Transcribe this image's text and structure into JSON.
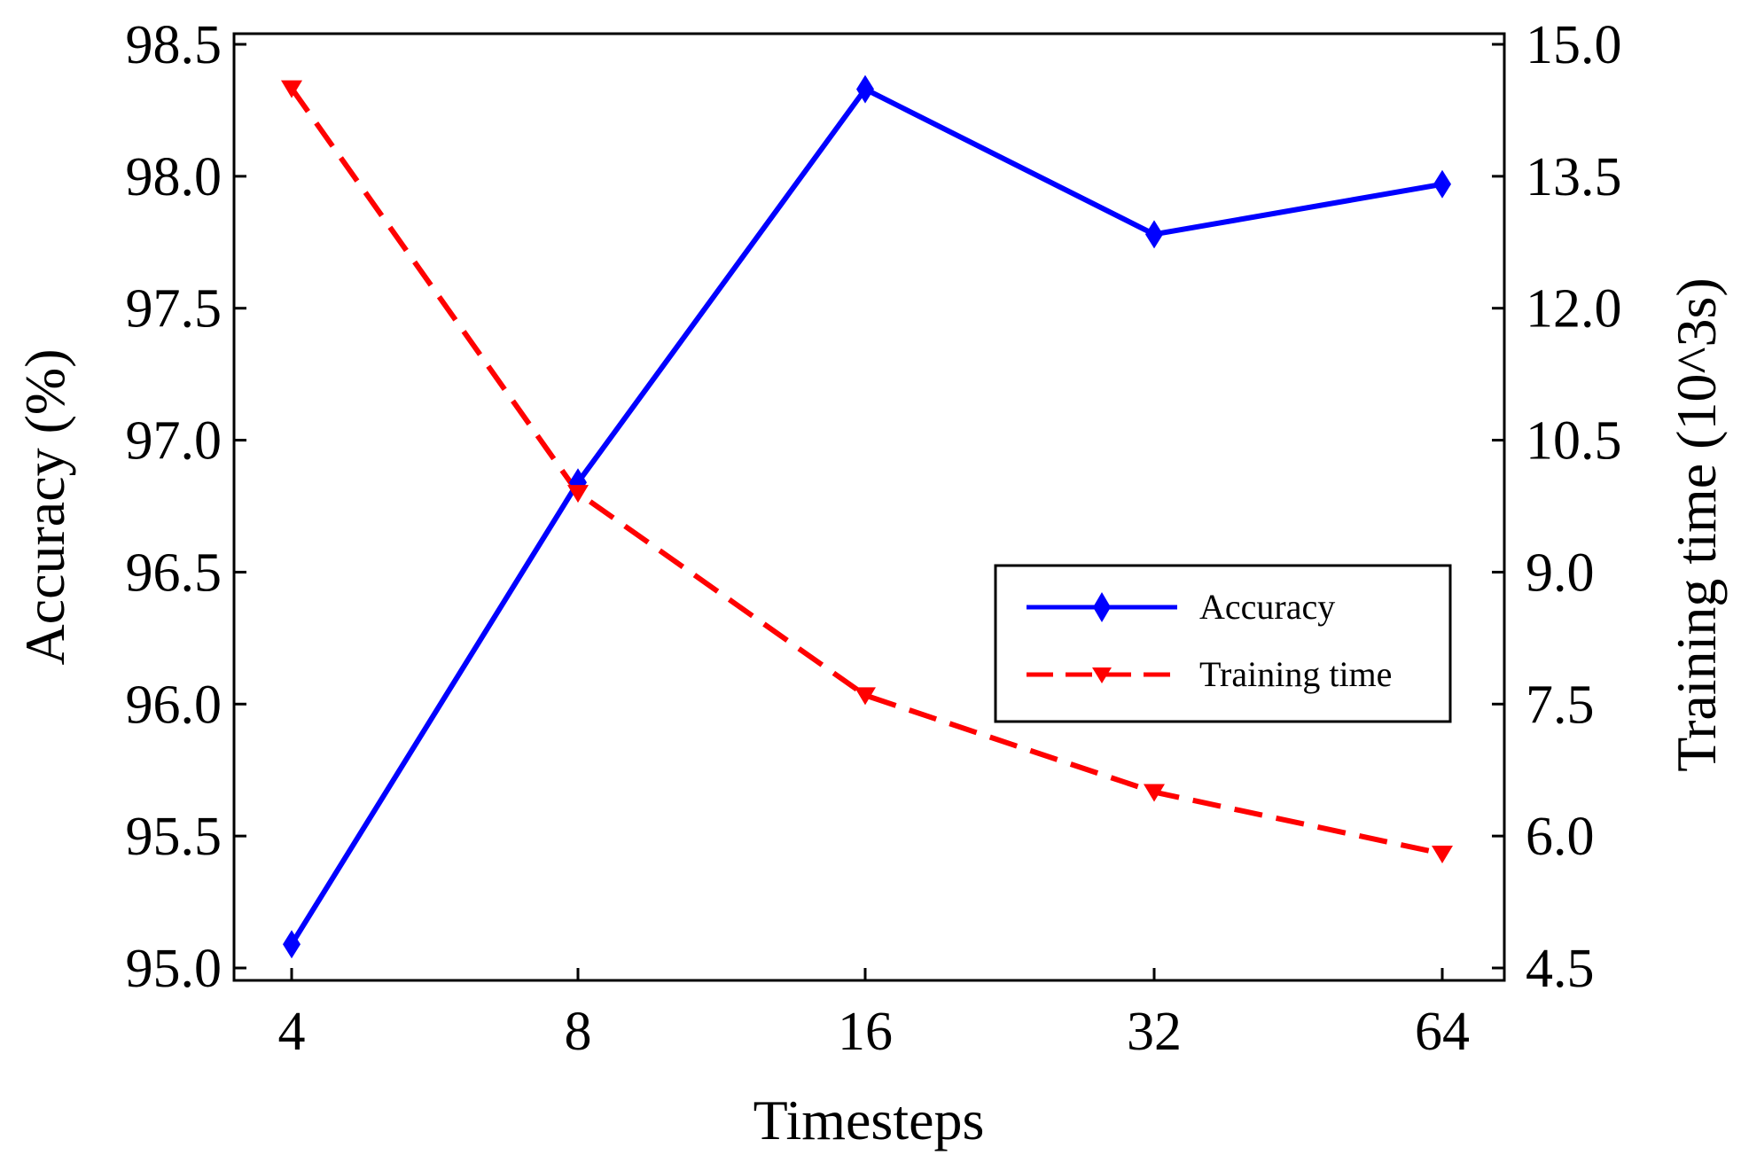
{
  "chart_data": {
    "type": "line",
    "title": "",
    "xlabel": "Timesteps",
    "ylabel": "Accuracy (%)",
    "y2label": "Training time (10^3s)",
    "categories": [
      "4",
      "8",
      "16",
      "32",
      "64"
    ],
    "ylim": [
      95.0,
      98.5
    ],
    "y2lim": [
      4.5,
      15.0
    ],
    "yticks": [
      "95.0",
      "95.5",
      "96.0",
      "96.5",
      "97.0",
      "97.5",
      "98.0",
      "98.5"
    ],
    "y2ticks": [
      "4.5",
      "6.0",
      "7.5",
      "9.0",
      "10.5",
      "12.0",
      "13.5",
      "15.0"
    ],
    "series": [
      {
        "name": "Accuracy",
        "axis": "left",
        "color": "#0000ff",
        "marker": "diamond",
        "line_style": "solid",
        "values": [
          95.09,
          96.84,
          98.33,
          97.78,
          97.97
        ]
      },
      {
        "name": "Training time",
        "axis": "right",
        "color": "#ff0000",
        "marker": "triangle-down",
        "line_style": "dashed",
        "values": [
          14.5,
          9.9,
          7.6,
          6.5,
          5.8
        ]
      }
    ],
    "legend": {
      "position": "center-right"
    }
  }
}
